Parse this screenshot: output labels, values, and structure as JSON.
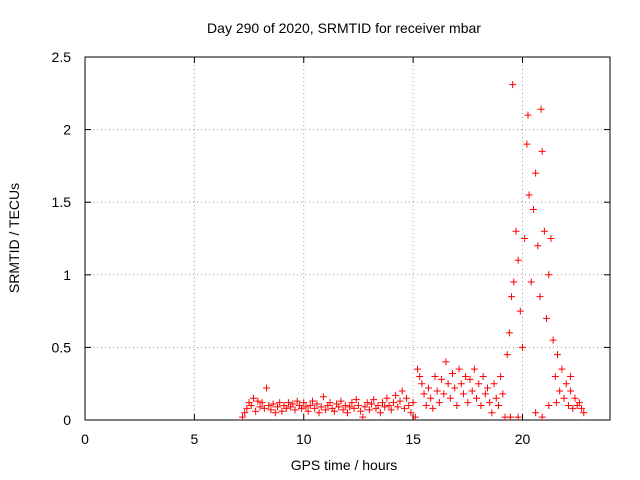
{
  "chart_data": {
    "type": "scatter",
    "title": "Day 290 of 2020, SRMTID for receiver mbar",
    "xlabel": "GPS time / hours",
    "ylabel": "SRMTID / TECUs",
    "xlim": [
      0,
      24
    ],
    "ylim": [
      0,
      2.5
    ],
    "x_ticks": [
      0,
      5,
      10,
      15,
      20
    ],
    "x_tick_labels": [
      "0",
      "5",
      "10",
      "15",
      "20"
    ],
    "y_ticks": [
      0,
      0.5,
      1,
      1.5,
      2,
      2.5
    ],
    "y_tick_labels": [
      "0",
      "0.5",
      "1",
      "1.5",
      "2",
      "2.5"
    ],
    "grid": true,
    "marker": "+",
    "marker_color": "#ff0000",
    "series": [
      {
        "name": "mbar",
        "points": [
          [
            7.2,
            0.02
          ],
          [
            7.3,
            0.05
          ],
          [
            7.4,
            0.08
          ],
          [
            7.5,
            0.12
          ],
          [
            7.6,
            0.1
          ],
          [
            7.7,
            0.15
          ],
          [
            7.8,
            0.06
          ],
          [
            7.9,
            0.13
          ],
          [
            8.0,
            0.09
          ],
          [
            8.1,
            0.12
          ],
          [
            8.2,
            0.08
          ],
          [
            8.3,
            0.22
          ],
          [
            8.4,
            0.1
          ],
          [
            8.5,
            0.07
          ],
          [
            8.6,
            0.11
          ],
          [
            8.7,
            0.05
          ],
          [
            8.8,
            0.09
          ],
          [
            8.9,
            0.12
          ],
          [
            9.0,
            0.06
          ],
          [
            9.1,
            0.1
          ],
          [
            9.2,
            0.08
          ],
          [
            9.3,
            0.12
          ],
          [
            9.4,
            0.09
          ],
          [
            9.5,
            0.11
          ],
          [
            9.6,
            0.07
          ],
          [
            9.7,
            0.13
          ],
          [
            9.8,
            0.1
          ],
          [
            9.9,
            0.08
          ],
          [
            10.0,
            0.12
          ],
          [
            10.1,
            0.09
          ],
          [
            10.2,
            0.06
          ],
          [
            10.3,
            0.1
          ],
          [
            10.4,
            0.13
          ],
          [
            10.5,
            0.08
          ],
          [
            10.6,
            0.11
          ],
          [
            10.7,
            0.05
          ],
          [
            10.8,
            0.09
          ],
          [
            10.9,
            0.16
          ],
          [
            11.0,
            0.07
          ],
          [
            11.1,
            0.1
          ],
          [
            11.2,
            0.12
          ],
          [
            11.3,
            0.08
          ],
          [
            11.4,
            0.06
          ],
          [
            11.5,
            0.11
          ],
          [
            11.6,
            0.09
          ],
          [
            11.7,
            0.13
          ],
          [
            11.8,
            0.07
          ],
          [
            11.9,
            0.1
          ],
          [
            12.0,
            0.05
          ],
          [
            12.1,
            0.09
          ],
          [
            12.2,
            0.12
          ],
          [
            12.3,
            0.08
          ],
          [
            12.4,
            0.14
          ],
          [
            12.5,
            0.1
          ],
          [
            12.6,
            0.06
          ],
          [
            12.7,
            0.02
          ],
          [
            12.8,
            0.09
          ],
          [
            12.9,
            0.12
          ],
          [
            13.0,
            0.07
          ],
          [
            13.1,
            0.11
          ],
          [
            13.2,
            0.14
          ],
          [
            13.3,
            0.08
          ],
          [
            13.4,
            0.1
          ],
          [
            13.5,
            0.05
          ],
          [
            13.6,
            0.12
          ],
          [
            13.7,
            0.09
          ],
          [
            13.8,
            0.15
          ],
          [
            13.9,
            0.1
          ],
          [
            14.0,
            0.07
          ],
          [
            14.1,
            0.12
          ],
          [
            14.2,
            0.17
          ],
          [
            14.3,
            0.09
          ],
          [
            14.4,
            0.13
          ],
          [
            14.5,
            0.2
          ],
          [
            14.6,
            0.08
          ],
          [
            14.7,
            0.15
          ],
          [
            14.8,
            0.1
          ],
          [
            14.9,
            0.05
          ],
          [
            15.0,
            0.12
          ],
          [
            15.1,
            0.02
          ],
          [
            15.2,
            0.35
          ],
          [
            15.3,
            0.3
          ],
          [
            15.4,
            0.25
          ],
          [
            15.5,
            0.18
          ],
          [
            15.6,
            0.1
          ],
          [
            15.7,
            0.22
          ],
          [
            15.8,
            0.15
          ],
          [
            15.9,
            0.08
          ],
          [
            16.0,
            0.3
          ],
          [
            16.1,
            0.2
          ],
          [
            16.2,
            0.12
          ],
          [
            16.3,
            0.28
          ],
          [
            16.4,
            0.18
          ],
          [
            16.5,
            0.4
          ],
          [
            16.6,
            0.25
          ],
          [
            16.7,
            0.15
          ],
          [
            16.8,
            0.32
          ],
          [
            16.9,
            0.22
          ],
          [
            17.0,
            0.1
          ],
          [
            17.1,
            0.35
          ],
          [
            17.2,
            0.25
          ],
          [
            17.3,
            0.18
          ],
          [
            17.4,
            0.3
          ],
          [
            17.5,
            0.12
          ],
          [
            17.6,
            0.28
          ],
          [
            17.7,
            0.2
          ],
          [
            17.8,
            0.35
          ],
          [
            17.9,
            0.15
          ],
          [
            18.0,
            0.25
          ],
          [
            18.1,
            0.1
          ],
          [
            18.2,
            0.3
          ],
          [
            18.3,
            0.18
          ],
          [
            18.4,
            0.22
          ],
          [
            18.5,
            0.12
          ],
          [
            18.6,
            0.05
          ],
          [
            18.7,
            0.25
          ],
          [
            18.8,
            0.15
          ],
          [
            18.9,
            0.1
          ],
          [
            19.0,
            0.3
          ],
          [
            19.1,
            0.18
          ],
          [
            19.2,
            0.02
          ],
          [
            19.3,
            0.45
          ],
          [
            19.4,
            0.6
          ],
          [
            19.5,
            0.85
          ],
          [
            19.55,
            2.31
          ],
          [
            19.6,
            0.95
          ],
          [
            19.7,
            1.3
          ],
          [
            19.8,
            1.1
          ],
          [
            19.9,
            0.75
          ],
          [
            20.0,
            0.5
          ],
          [
            20.1,
            1.25
          ],
          [
            20.2,
            1.9
          ],
          [
            20.25,
            2.1
          ],
          [
            20.3,
            1.55
          ],
          [
            20.4,
            0.95
          ],
          [
            20.5,
            1.45
          ],
          [
            20.6,
            1.7
          ],
          [
            20.7,
            1.2
          ],
          [
            20.8,
            0.85
          ],
          [
            20.85,
            2.14
          ],
          [
            20.9,
            1.85
          ],
          [
            21.0,
            1.3
          ],
          [
            21.1,
            0.7
          ],
          [
            21.2,
            1.0
          ],
          [
            21.3,
            1.25
          ],
          [
            21.4,
            0.55
          ],
          [
            21.5,
            0.3
          ],
          [
            21.6,
            0.45
          ],
          [
            21.7,
            0.2
          ],
          [
            21.8,
            0.35
          ],
          [
            21.9,
            0.15
          ],
          [
            22.0,
            0.25
          ],
          [
            22.1,
            0.1
          ],
          [
            22.2,
            0.2
          ],
          [
            22.3,
            0.08
          ],
          [
            22.4,
            0.15
          ],
          [
            22.5,
            0.1
          ],
          [
            22.6,
            0.12
          ],
          [
            22.7,
            0.08
          ],
          [
            22.8,
            0.05
          ],
          [
            20.6,
            0.05
          ],
          [
            20.9,
            0.02
          ],
          [
            21.2,
            0.1
          ],
          [
            19.8,
            0.02
          ],
          [
            19.45,
            0.02
          ],
          [
            21.55,
            0.12
          ],
          [
            22.2,
            0.3
          ]
        ]
      }
    ]
  }
}
